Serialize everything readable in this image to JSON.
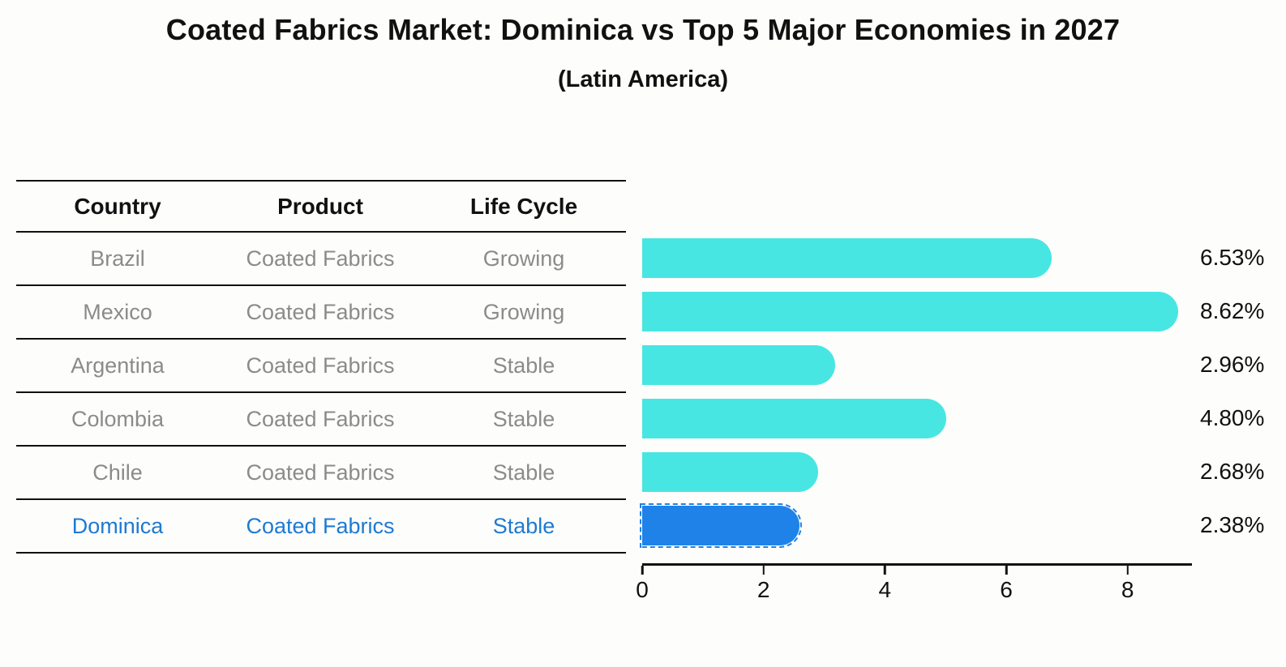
{
  "chart_data": {
    "type": "bar",
    "orientation": "horizontal",
    "title": "Coated Fabrics Market: Dominica vs Top 5 Major Economies in 2027",
    "subtitle": "(Latin America)",
    "categories": [
      "Brazil",
      "Mexico",
      "Argentina",
      "Colombia",
      "Chile",
      "Dominica"
    ],
    "values": [
      6.53,
      8.62,
      2.96,
      4.8,
      2.68,
      2.38
    ],
    "value_labels": [
      "6.53%",
      "8.62%",
      "2.96%",
      "4.80%",
      "2.68%",
      "2.38%"
    ],
    "xticks": [
      0,
      2,
      4,
      6,
      8
    ],
    "xlim": [
      0,
      9.06
    ],
    "ylabel": "",
    "xlabel": "",
    "grid": false,
    "legend": "none",
    "highlight_index": 5,
    "bar_color": "#48E6E2",
    "highlight_bar_color": "#1E82E8",
    "background_color": "#FDFDFC"
  },
  "table": {
    "headers": [
      "Country",
      "Product",
      "Life Cycle"
    ],
    "rows": [
      {
        "country": "Brazil",
        "product": "Coated Fabrics",
        "life_cycle": "Growing"
      },
      {
        "country": "Mexico",
        "product": "Coated Fabrics",
        "life_cycle": "Growing"
      },
      {
        "country": "Argentina",
        "product": "Coated Fabrics",
        "life_cycle": "Stable"
      },
      {
        "country": "Colombia",
        "product": "Coated Fabrics",
        "life_cycle": "Stable"
      },
      {
        "country": "Chile",
        "product": "Coated Fabrics",
        "life_cycle": "Stable"
      },
      {
        "country": "Dominica",
        "product": "Coated Fabrics",
        "life_cycle": "Stable"
      }
    ],
    "text_color": "#8B8B8B",
    "highlight_text_color": "#1E7AD2"
  }
}
